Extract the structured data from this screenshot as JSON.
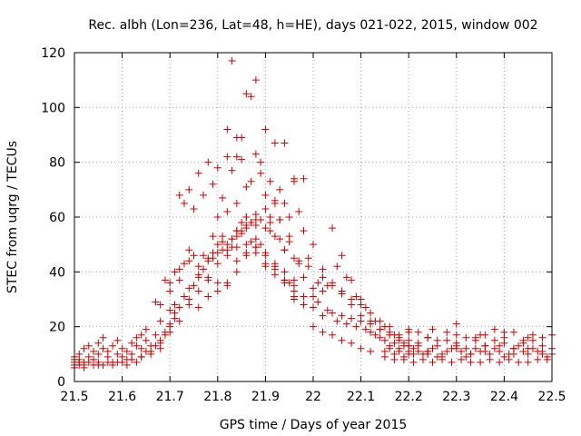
{
  "chart_data": {
    "type": "scatter",
    "title": "Rec. albh (Lon=236, Lat=48, h=HE), days 021-022, 2015, window 002",
    "xlabel": "GPS time / Days of year 2015",
    "ylabel": "STEC from uqrg / TECUs",
    "xlim": [
      21.5,
      22.5
    ],
    "ylim": [
      0,
      120
    ],
    "xticks": [
      "21.5",
      "21.6",
      "21.7",
      "21.8",
      "21.9",
      "22",
      "22.1",
      "22.2",
      "22.3",
      "22.4",
      "22.5"
    ],
    "yticks": [
      "0",
      "20",
      "40",
      "60",
      "80",
      "100",
      "120"
    ],
    "grid": true,
    "marker": "+",
    "marker_color": "#cc0000",
    "series": [
      {
        "name": "STEC",
        "x": [
          21.5,
          21.5,
          21.5,
          21.51,
          21.51,
          21.51,
          21.52,
          21.52,
          21.53,
          21.53,
          21.54,
          21.54,
          21.55,
          21.55,
          21.56,
          21.56,
          21.57,
          21.57,
          21.58,
          21.59,
          21.59,
          21.6,
          21.6,
          21.61,
          21.62,
          21.62,
          21.63,
          21.63,
          21.64,
          21.64,
          21.65,
          21.65,
          21.66,
          21.67,
          21.68,
          21.68,
          21.69,
          21.7,
          21.7,
          21.71,
          21.71,
          21.5,
          21.5,
          21.51,
          21.52,
          21.53,
          21.54,
          21.55,
          21.56,
          21.57,
          21.58,
          21.59,
          21.6,
          21.61,
          21.62,
          21.63,
          21.64,
          21.65,
          21.66,
          21.67,
          21.68,
          21.69,
          21.7,
          21.71,
          21.72,
          21.73,
          21.74,
          21.75,
          21.76,
          21.77,
          21.78,
          21.79,
          21.8,
          21.81,
          21.82,
          21.83,
          21.84,
          21.85,
          21.86,
          21.87,
          21.88,
          21.52,
          21.55,
          21.58,
          21.61,
          21.64,
          21.66,
          21.68,
          21.7,
          21.72,
          21.74,
          21.76,
          21.78,
          21.8,
          21.82,
          21.84,
          21.86,
          21.88,
          21.9,
          21.92,
          21.94,
          21.96,
          21.98,
          21.67,
          21.68,
          21.69,
          21.7,
          21.71,
          21.72,
          21.73,
          21.74,
          21.75,
          21.76,
          21.77,
          21.78,
          21.79,
          21.8,
          21.81,
          21.82,
          21.83,
          21.84,
          21.85,
          21.86,
          21.87,
          21.88,
          21.89,
          21.9,
          21.91,
          21.92,
          21.93,
          21.94,
          21.95,
          21.96,
          21.97,
          21.72,
          21.74,
          21.76,
          21.78,
          21.8,
          21.82,
          21.84,
          21.86,
          21.88,
          21.9,
          21.92,
          21.94,
          21.96,
          21.98,
          21.73,
          21.75,
          21.77,
          21.79,
          21.81,
          21.83,
          21.85,
          21.87,
          21.89,
          21.91,
          21.93,
          21.95,
          21.97,
          21.99,
          21.74,
          21.76,
          21.78,
          21.8,
          21.82,
          21.84,
          21.86,
          21.88,
          21.9,
          21.92,
          21.94,
          21.96,
          21.8,
          21.82,
          21.84,
          21.86,
          21.88,
          21.9,
          21.92,
          21.94,
          21.96,
          21.98,
          21.7,
          21.72,
          21.74,
          21.76,
          21.78,
          21.8,
          21.82,
          21.84,
          21.86,
          21.88,
          21.9,
          21.92,
          21.94,
          21.96,
          21.98,
          21.82,
          21.83,
          21.84,
          21.85,
          21.86,
          21.87,
          21.88,
          21.89,
          21.9,
          21.91,
          21.92,
          21.93,
          21.94,
          21.95,
          21.96,
          21.84,
          21.86,
          21.88,
          21.9,
          21.92,
          21.94,
          21.96,
          21.98,
          21.79,
          21.81,
          21.83,
          21.85,
          21.87,
          21.89,
          21.91,
          21.93,
          21.95,
          21.97,
          21.99,
          22.0,
          22.01,
          22.02,
          22.03,
          22.04,
          22.05,
          22.06,
          22.07,
          22.08,
          22.09,
          22.1,
          22.11,
          22.12,
          22.13,
          22.14,
          22.15,
          22.16,
          22.17,
          22.18,
          22.19,
          22.2,
          22.0,
          22.01,
          22.02,
          22.03,
          22.04,
          22.05,
          22.06,
          22.07,
          22.08,
          22.09,
          22.1,
          22.11,
          22.12,
          22.13,
          22.14,
          22.15,
          22.16,
          22.17,
          22.18,
          22.19,
          22.2,
          22.0,
          22.02,
          22.04,
          22.06,
          22.08,
          22.1,
          22.12,
          22.14,
          22.16,
          22.18,
          22.2,
          22.22,
          22.24,
          22.0,
          22.02,
          22.04,
          22.06,
          22.08,
          22.1,
          22.0,
          22.02,
          22.04,
          22.06,
          22.08,
          22.1,
          22.12,
          22.15,
          22.17,
          22.19,
          22.21,
          22.23,
          22.25,
          22.27,
          22.29,
          22.31,
          22.33,
          22.35,
          22.37,
          22.39,
          22.41,
          22.43,
          22.45,
          22.47,
          22.49,
          22.15,
          22.16,
          22.17,
          22.18,
          22.19,
          22.2,
          22.21,
          22.22,
          22.23,
          22.24,
          22.25,
          22.26,
          22.27,
          22.28,
          22.29,
          22.3,
          22.31,
          22.32,
          22.33,
          22.34,
          22.35,
          22.36,
          22.37,
          22.38,
          22.39,
          22.4,
          22.41,
          22.42,
          22.43,
          22.44,
          22.45,
          22.46,
          22.47,
          22.48,
          22.49,
          22.5,
          22.2,
          22.22,
          22.24,
          22.26,
          22.28,
          22.3,
          22.32,
          22.34,
          22.36,
          22.38,
          22.4,
          22.42,
          22.44,
          22.46,
          22.48,
          22.5,
          22.2,
          22.25,
          22.3,
          22.35,
          22.4,
          22.45,
          22.5,
          22.21,
          22.24,
          22.27,
          22.3,
          22.33,
          22.36,
          22.39,
          22.42,
          22.45,
          22.48,
          22.12,
          22.14,
          22.16,
          22.18,
          22.2,
          22.22,
          22.24,
          22.26,
          22.28,
          22.3,
          22.32,
          22.34,
          22.36,
          22.38,
          22.4,
          22.42,
          22.44,
          22.46,
          22.48
        ],
        "y": [
          9,
          7,
          5,
          6,
          8,
          10,
          7,
          12,
          9,
          13,
          8,
          11,
          14,
          10,
          12,
          16,
          9,
          11,
          13,
          10,
          15,
          12,
          9,
          11,
          14,
          10,
          13,
          16,
          17,
          12,
          15,
          19,
          13,
          17,
          15,
          22,
          18,
          26,
          21,
          28,
          25,
          6,
          8,
          7,
          6,
          7,
          6,
          7,
          6,
          7,
          6,
          7,
          7,
          6,
          8,
          7,
          9,
          11,
          10,
          13,
          12,
          17,
          20,
          23,
          27,
          31,
          34,
          35,
          38,
          41,
          44,
          45,
          47,
          48,
          50,
          52,
          53,
          54,
          56,
          58,
          57,
          5,
          6,
          7,
          8,
          9,
          11,
          14,
          18,
          22,
          28,
          33,
          38,
          43,
          46,
          49,
          50,
          49,
          46,
          42,
          37,
          31,
          28,
          29,
          28,
          37,
          36,
          40,
          41,
          43,
          48,
          46,
          42,
          46,
          45,
          47,
          50,
          53,
          48,
          52,
          55,
          58,
          60,
          58,
          61,
          59,
          63,
          60,
          53,
          52,
          48,
          51,
          45,
          44,
          68,
          70,
          76,
          80,
          78,
          82,
          89,
          105,
          110,
          92,
          87,
          87,
          74,
          55,
          65,
          63,
          68,
          72,
          67,
          77,
          81,
          104,
          80,
          73,
          70,
          60,
          62,
          45,
          44,
          39,
          37,
          36,
          35,
          40,
          47,
          47,
          43,
          41,
          36,
          33,
          60,
          62,
          65,
          60,
          59,
          68,
          66,
          65,
          73,
          74,
          33,
          37,
          30,
          27,
          31,
          33,
          36,
          44,
          46,
          49,
          47,
          43,
          40,
          35,
          38,
          92,
          117,
          82,
          89,
          71,
          73,
          83,
          76,
          56,
          58,
          65,
          59,
          48,
          36,
          37,
          55,
          57,
          52,
          42,
          39,
          37,
          30,
          31,
          53,
          51,
          49,
          55,
          51,
          50,
          55,
          59,
          53,
          43,
          42,
          27,
          29,
          24,
          26,
          25,
          22,
          24,
          21,
          23,
          20,
          22,
          19,
          18,
          17,
          16,
          15,
          13,
          14,
          12,
          13,
          11,
          34,
          36,
          38,
          35,
          56,
          42,
          46,
          38,
          37,
          31,
          30,
          27,
          25,
          22,
          22,
          20,
          18,
          17,
          16,
          14,
          13,
          50,
          41,
          36,
          33,
          28,
          24,
          22,
          19,
          17,
          15,
          13,
          11,
          10,
          31,
          33,
          35,
          32,
          30,
          28,
          20,
          18,
          17,
          15,
          14,
          12,
          11,
          9,
          8,
          8,
          7,
          8,
          7,
          8,
          7,
          8,
          7,
          7,
          8,
          7,
          8,
          7,
          7,
          8,
          8,
          11,
          12,
          10,
          11,
          9,
          10,
          12,
          13,
          10,
          11,
          12,
          9,
          10,
          11,
          12,
          13,
          11,
          9,
          10,
          12,
          11,
          13,
          10,
          12,
          11,
          9,
          10,
          12,
          13,
          11,
          10,
          12,
          11,
          10,
          9,
          10,
          15,
          14,
          16,
          13,
          15,
          14,
          12,
          16,
          13,
          15,
          14,
          12,
          14,
          15,
          13,
          12,
          18,
          19,
          21,
          17,
          18,
          16,
          17,
          10,
          11,
          9,
          12,
          10,
          11,
          13,
          10,
          12,
          11,
          21,
          19,
          20,
          17,
          19,
          18,
          16,
          15,
          18,
          17,
          16,
          15,
          17,
          19,
          16,
          18,
          15,
          17,
          16
        ]
      }
    ]
  }
}
